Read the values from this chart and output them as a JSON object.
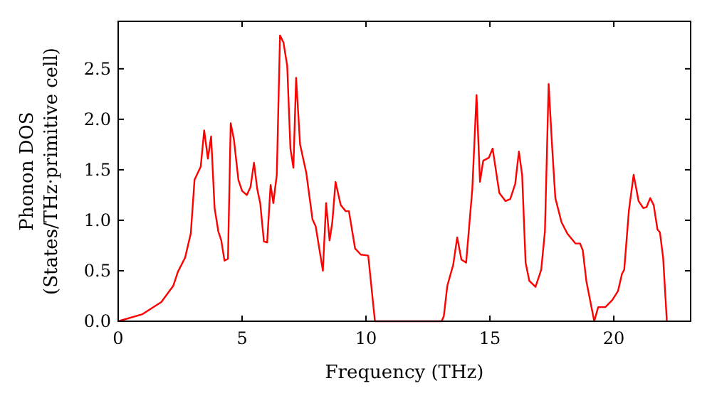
{
  "chart_data": {
    "type": "line",
    "xlabel": "Frequency (THz)",
    "ylabel": "Phonon DOS\n(States/THz·primitive cell)",
    "xlim": [
      0,
      23.1
    ],
    "ylim": [
      0,
      2.97
    ],
    "xticks": [
      0,
      5,
      10,
      15,
      20
    ],
    "yticks": [
      {
        "value": 0,
        "label": "0.0"
      },
      {
        "value": 0.5,
        "label": "0.5"
      },
      {
        "value": 1,
        "label": "1.0"
      },
      {
        "value": 1.5,
        "label": "1.5"
      },
      {
        "value": 2,
        "label": "2.0"
      },
      {
        "value": 2.5,
        "label": "2.5"
      }
    ],
    "grid": false,
    "marker": "none",
    "line_style": "solid",
    "series": [
      {
        "color": "#ff0000",
        "x": [
          0,
          0.98,
          1.74,
          2.22,
          2.41,
          2.7,
          2.93,
          3.08,
          3.33,
          3.47,
          3.62,
          3.75,
          3.89,
          4.04,
          4.16,
          4.29,
          4.43,
          4.54,
          4.67,
          4.85,
          5.0,
          5.19,
          5.34,
          5.48,
          5.61,
          5.73,
          5.88,
          6.01,
          6.15,
          6.26,
          6.4,
          6.53,
          6.67,
          6.82,
          6.95,
          7.07,
          7.18,
          7.34,
          7.59,
          7.84,
          7.97,
          8.26,
          8.39,
          8.53,
          8.64,
          8.77,
          8.98,
          9.18,
          9.31,
          9.56,
          9.79,
          10.09,
          10.36,
          13.05,
          13.14,
          13.28,
          13.52,
          13.68,
          13.85,
          14.04,
          14.29,
          14.46,
          14.6,
          14.73,
          14.96,
          15.11,
          15.38,
          15.63,
          15.82,
          16.02,
          16.17,
          16.3,
          16.44,
          16.59,
          16.84,
          17.07,
          17.22,
          17.37,
          17.51,
          17.64,
          17.89,
          18.12,
          18.45,
          18.64,
          18.75,
          18.89,
          19.21,
          19.37,
          19.66,
          19.94,
          20.17,
          20.33,
          20.42,
          20.61,
          20.8,
          21.0,
          21.19,
          21.32,
          21.47,
          21.61,
          21.76,
          21.86,
          21.99,
          22.14
        ],
        "values": [
          0,
          0.07,
          0.19,
          0.35,
          0.49,
          0.63,
          0.87,
          1.4,
          1.53,
          1.89,
          1.61,
          1.83,
          1.12,
          0.89,
          0.8,
          0.6,
          0.62,
          1.96,
          1.8,
          1.4,
          1.29,
          1.25,
          1.33,
          1.57,
          1.31,
          1.17,
          0.79,
          0.78,
          1.35,
          1.17,
          1.45,
          2.83,
          2.76,
          2.53,
          1.71,
          1.52,
          2.41,
          1.75,
          1.47,
          1.01,
          0.94,
          0.5,
          1.17,
          0.8,
          0.98,
          1.38,
          1.15,
          1.09,
          1.09,
          0.72,
          0.66,
          0.65,
          0,
          0,
          0.05,
          0.35,
          0.56,
          0.83,
          0.61,
          0.58,
          1.31,
          2.24,
          1.38,
          1.59,
          1.62,
          1.71,
          1.27,
          1.19,
          1.21,
          1.36,
          1.68,
          1.45,
          0.58,
          0.4,
          0.34,
          0.51,
          0.89,
          2.35,
          1.73,
          1.22,
          0.98,
          0.87,
          0.77,
          0.77,
          0.7,
          0.4,
          0,
          0.14,
          0.14,
          0.21,
          0.3,
          0.47,
          0.51,
          1.1,
          1.45,
          1.19,
          1.12,
          1.13,
          1.22,
          1.15,
          0.91,
          0.88,
          0.63,
          0
        ]
      }
    ]
  }
}
